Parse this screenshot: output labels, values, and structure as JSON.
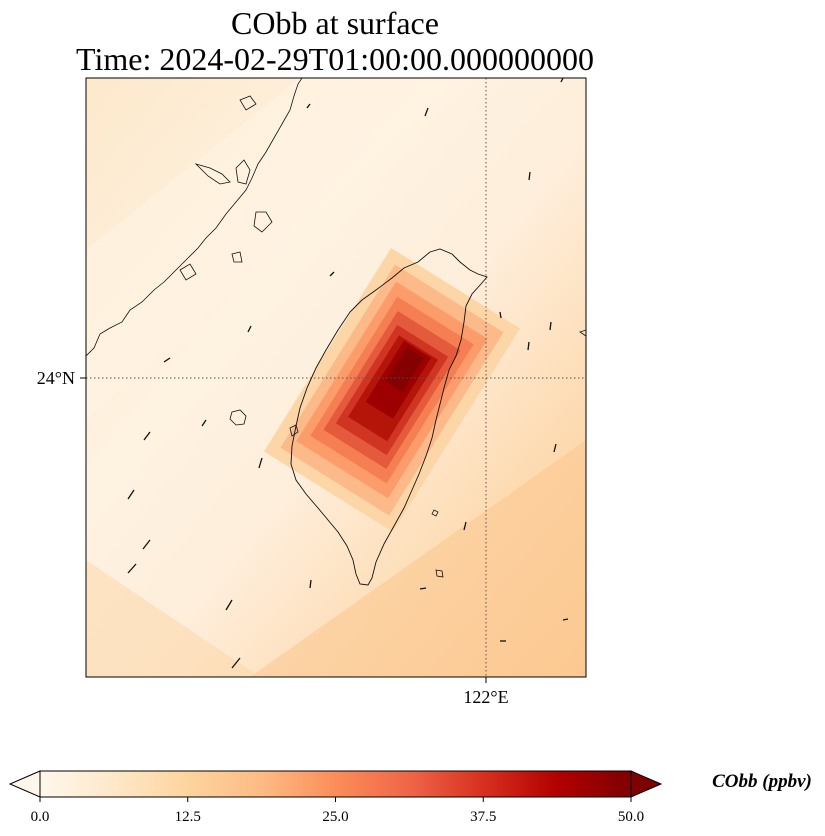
{
  "chart_data": {
    "type": "heatmap",
    "title": "CObb at surface",
    "subtitle": "Time: 2024-02-29T01:00:00.000000000",
    "x_tick_labels": [
      "122°E"
    ],
    "y_tick_labels": [
      "24°N"
    ],
    "x_ticks_deg": [
      122.0
    ],
    "y_ticks_deg": [
      24.0
    ],
    "lon_range": [
      119.0,
      122.75
    ],
    "lat_range": [
      21.75,
      26.25
    ],
    "gridlines": true,
    "colormap": "OrRd",
    "colorbar": {
      "label": "CObb (ppbv)",
      "ticks": [
        "0.0",
        "12.5",
        "25.0",
        "37.5",
        "50.0"
      ],
      "range": [
        0,
        50
      ],
      "extend": "both",
      "colors": [
        "#fff7ec",
        "#fee8c8",
        "#fdd49e",
        "#fdbb84",
        "#fc8d59",
        "#ef6548",
        "#d7301f",
        "#b30000",
        "#7f0000"
      ]
    },
    "field_estimate": {
      "background_ppbv": [
        2,
        12
      ],
      "peak_ppbv": 50,
      "peak_location": "central Taiwan"
    }
  }
}
